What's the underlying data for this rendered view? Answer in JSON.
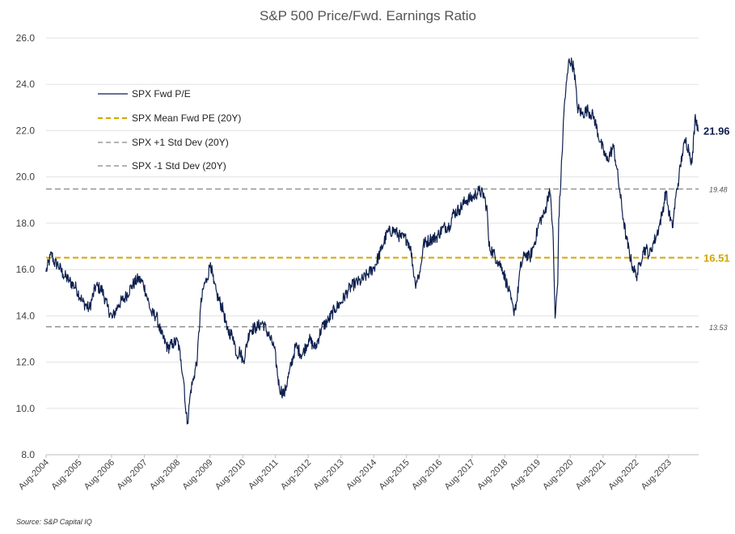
{
  "chart_data": {
    "type": "line",
    "title": "S&P 500 Price/Fwd. Earnings Ratio",
    "xlabel": "",
    "ylabel": "",
    "ylim": [
      8.0,
      26.0
    ],
    "yticks": [
      "8.0",
      "10.0",
      "12.0",
      "14.0",
      "16.0",
      "18.0",
      "20.0",
      "22.0",
      "24.0",
      "26.0"
    ],
    "xlim": [
      2004.583,
      2024.5
    ],
    "xticks": [
      "Aug-2004",
      "Aug-2005",
      "Aug-2006",
      "Aug-2007",
      "Aug-2008",
      "Aug-2009",
      "Aug-2010",
      "Aug-2011",
      "Aug-2012",
      "Aug-2013",
      "Aug-2014",
      "Aug-2015",
      "Aug-2016",
      "Aug-2017",
      "Aug-2018",
      "Aug-2019",
      "Aug-2020",
      "Aug-2021",
      "Aug-2022",
      "Aug-2023"
    ],
    "grid": "horizontal",
    "legend_position": "upper-left",
    "series": [
      {
        "name": "SPX Fwd P/E",
        "color": "#0d1f4e",
        "style": "solid",
        "x": [
          2004.58,
          2004.75,
          2004.83,
          2004.95,
          2005.1,
          2005.3,
          2005.5,
          2005.7,
          2005.9,
          2006.1,
          2006.3,
          2006.45,
          2006.6,
          2006.8,
          2007.0,
          2007.2,
          2007.4,
          2007.55,
          2007.65,
          2007.8,
          2007.95,
          2008.1,
          2008.3,
          2008.45,
          2008.6,
          2008.7,
          2008.8,
          2008.85,
          2008.9,
          2009.0,
          2009.1,
          2009.2,
          2009.3,
          2009.4,
          2009.5,
          2009.6,
          2009.7,
          2009.8,
          2010.0,
          2010.1,
          2010.3,
          2010.4,
          2010.5,
          2010.6,
          2010.8,
          2011.0,
          2011.2,
          2011.4,
          2011.55,
          2011.7,
          2011.85,
          2012.0,
          2012.2,
          2012.4,
          2012.6,
          2012.8,
          2013.0,
          2013.2,
          2013.4,
          2013.6,
          2013.8,
          2014.0,
          2014.2,
          2014.4,
          2014.6,
          2014.8,
          2015.0,
          2015.2,
          2015.4,
          2015.6,
          2015.7,
          2015.85,
          2016.0,
          2016.1,
          2016.3,
          2016.5,
          2016.7,
          2016.9,
          2017.0,
          2017.2,
          2017.4,
          2017.6,
          2017.8,
          2017.95,
          2018.05,
          2018.1,
          2018.2,
          2018.35,
          2018.5,
          2018.7,
          2018.85,
          2018.95,
          2019.05,
          2019.2,
          2019.35,
          2019.5,
          2019.65,
          2019.8,
          2019.95,
          2020.05,
          2020.12,
          2020.2,
          2020.23,
          2020.3,
          2020.4,
          2020.55,
          2020.7,
          2020.8,
          2020.95,
          2021.1,
          2021.3,
          2021.5,
          2021.7,
          2021.9,
          2022.0,
          2022.1,
          2022.2,
          2022.3,
          2022.45,
          2022.6,
          2022.7,
          2022.8,
          2022.9,
          2023.0,
          2023.1,
          2023.2,
          2023.3,
          2023.4,
          2023.5,
          2023.6,
          2023.7,
          2023.8,
          2023.9,
          2024.0,
          2024.1,
          2024.2,
          2024.3,
          2024.4,
          2024.5
        ],
        "values": [
          15.9,
          16.7,
          16.3,
          16.2,
          15.8,
          15.5,
          15.2,
          14.6,
          14.3,
          15.3,
          15.1,
          14.4,
          13.9,
          14.5,
          14.8,
          15.3,
          15.6,
          15.4,
          14.9,
          14.1,
          14.0,
          13.2,
          12.6,
          12.8,
          12.9,
          12.1,
          11.0,
          9.8,
          9.4,
          10.8,
          11.4,
          12.2,
          14.4,
          15.3,
          15.6,
          16.3,
          15.4,
          14.9,
          14.2,
          13.4,
          13.1,
          12.3,
          12.5,
          12.0,
          13.4,
          13.5,
          13.7,
          13.1,
          12.6,
          10.9,
          10.6,
          11.5,
          12.7,
          12.3,
          13.0,
          12.6,
          13.5,
          13.8,
          14.3,
          14.6,
          15.1,
          15.4,
          15.5,
          15.8,
          16.1,
          16.8,
          17.6,
          17.7,
          17.4,
          17.3,
          17.0,
          15.4,
          15.9,
          17.1,
          17.3,
          17.4,
          17.8,
          17.9,
          18.4,
          18.6,
          19.0,
          19.1,
          19.4,
          19.2,
          18.5,
          17.0,
          16.8,
          16.4,
          16.1,
          15.1,
          14.2,
          14.6,
          16.0,
          16.7,
          16.5,
          17.2,
          18.1,
          18.4,
          19.5,
          17.8,
          13.9,
          15.4,
          18.2,
          20.0,
          23.1,
          25.1,
          24.7,
          23.0,
          22.7,
          22.9,
          22.6,
          21.5,
          20.7,
          21.3,
          20.4,
          19.3,
          18.2,
          17.3,
          16.3,
          15.7,
          16.2,
          16.8,
          16.9,
          16.6,
          17.1,
          17.4,
          17.9,
          18.5,
          19.4,
          18.4,
          17.8,
          19.1,
          20.0,
          21.0,
          21.6,
          21.2,
          20.6,
          22.7,
          21.96
        ]
      },
      {
        "name": "SPX Mean Fwd PE (20Y)",
        "color": "#d4a500",
        "style": "dashed",
        "value": 16.51
      },
      {
        "name": "SPX +1 Std Dev (20Y)",
        "color": "#9a9a9a",
        "style": "dashed",
        "value": 19.48
      },
      {
        "name": "SPX -1 Std Dev (20Y)",
        "color": "#9a9a9a",
        "style": "dashed",
        "value": 13.53
      }
    ],
    "annotations": {
      "last_value": "21.96",
      "mean_label": "16.51",
      "upper_label": "19.48",
      "lower_label": "13.53"
    },
    "source": "Source: S&P Capital IQ"
  }
}
